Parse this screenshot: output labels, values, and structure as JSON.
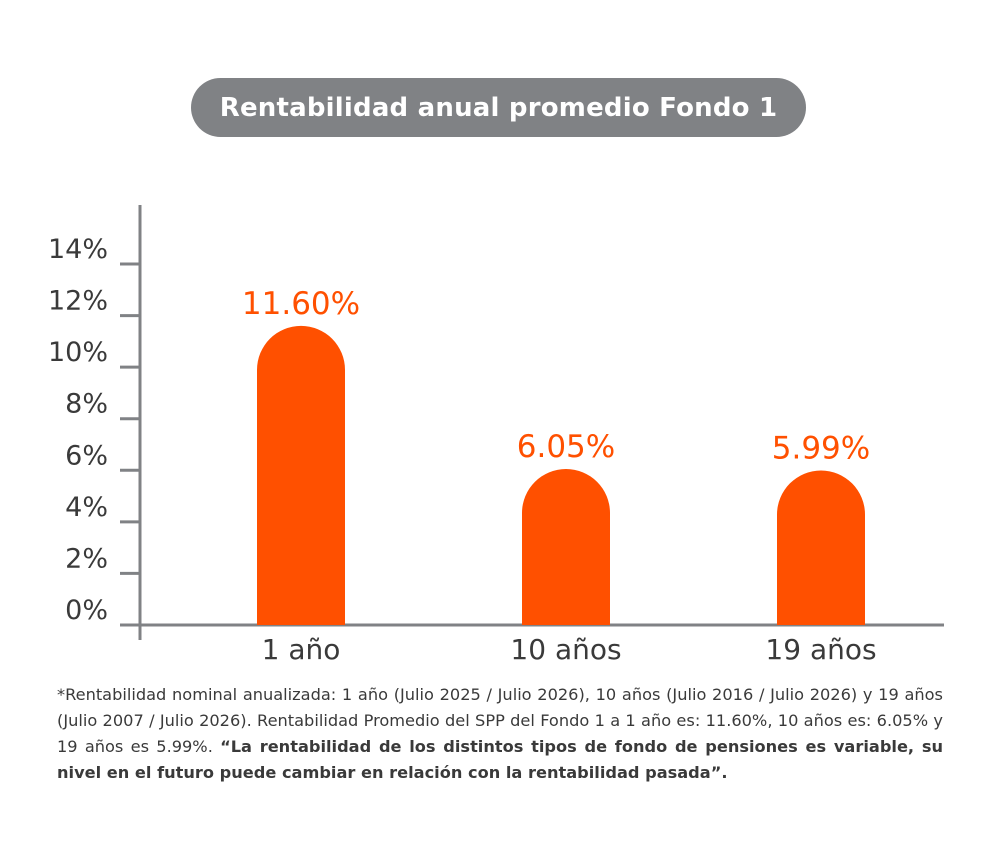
{
  "chart_data": {
    "type": "bar",
    "title": "Rentabilidad anual promedio Fondo 1",
    "categories": [
      "1 año",
      "10 años",
      "19 años"
    ],
    "values": [
      11.6,
      6.05,
      5.99
    ],
    "value_labels": [
      "11.60%",
      "6.05%",
      "5.99%"
    ],
    "yticks": [
      "0%",
      "2%",
      "4%",
      "6%",
      "8%",
      "10%",
      "12%",
      "14%"
    ],
    "ylim": [
      0,
      14
    ],
    "grid": false,
    "legend": "none",
    "bar_color": "#FF5000",
    "label_color": "#FF5000",
    "axis_color": "#808285"
  },
  "footnote": {
    "normal": "*Rentabilidad nominal anualizada: 1 año (Julio 2025 / Julio 2026), 10 años (Julio 2016 / Julio 2026) y 19 años (Julio 2007 / Julio 2026). Rentabilidad Promedio del SPP del Fondo 1 a 1 año es: 11.60%, 10 años es: 6.05% y 19 años es 5.99%. ",
    "bold": "“La rentabilidad de los distintos tipos de fondo de pensiones es variable, su nivel en el futuro puede cambiar en relación con la rentabilidad pasada”."
  }
}
